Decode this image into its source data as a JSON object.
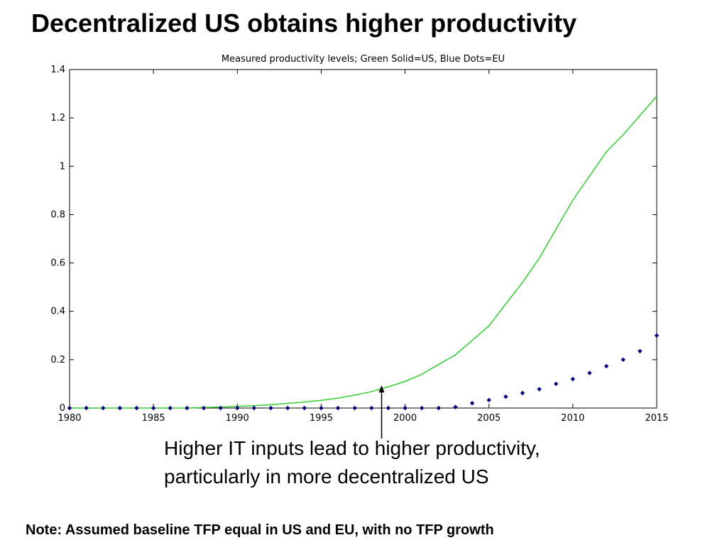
{
  "slide": {
    "title": "Decentralized US obtains higher productivity",
    "annotation_lines": [
      "Higher IT inputs lead to higher productivity,",
      "particularly in more decentralized US"
    ],
    "note": "Note: Assumed baseline TFP equal in US and EU, with no TFP growth"
  },
  "chart_data": {
    "type": "line",
    "title": "Measured productivity levels; Green Solid=US, Blue Dots=EU",
    "xlabel": "",
    "ylabel": "",
    "xlim": [
      1980,
      2015
    ],
    "ylim": [
      0,
      1.4
    ],
    "x_ticks": [
      1980,
      1985,
      1990,
      1995,
      2000,
      2005,
      2010,
      2015
    ],
    "y_ticks": [
      0,
      0.2,
      0.4,
      0.6,
      0.8,
      1,
      1.2,
      1.4
    ],
    "y_tick_labels": [
      "0",
      "0.2",
      "0.4",
      "0.6",
      "0.8",
      "1",
      "1.2",
      "1.4"
    ],
    "grid": false,
    "legend": "in title",
    "x": [
      1980,
      1981,
      1982,
      1983,
      1984,
      1985,
      1986,
      1987,
      1988,
      1989,
      1990,
      1991,
      1992,
      1993,
      1994,
      1995,
      1996,
      1997,
      1998,
      1999,
      2000,
      2001,
      2002,
      2003,
      2004,
      2005,
      2006,
      2007,
      2008,
      2009,
      2010,
      2011,
      2012,
      2013,
      2014,
      2015
    ],
    "series": [
      {
        "name": "US",
        "style": "solid",
        "color": "#33cc33",
        "values": [
          0,
          0,
          0,
          0,
          0,
          0,
          0,
          0,
          0.002,
          0.004,
          0.007,
          0.01,
          0.014,
          0.019,
          0.025,
          0.032,
          0.041,
          0.053,
          0.068,
          0.088,
          0.11,
          0.14,
          0.18,
          0.22,
          0.28,
          0.34,
          0.43,
          0.52,
          0.62,
          0.74,
          0.86,
          0.96,
          1.06,
          1.13,
          1.21,
          1.29
        ]
      },
      {
        "name": "EU",
        "style": "dots",
        "color": "#000080",
        "values": [
          0,
          0,
          0,
          0,
          0,
          0,
          0,
          0,
          0,
          0,
          0,
          0,
          0,
          0,
          0,
          0,
          0,
          0,
          0,
          0,
          0,
          0,
          0,
          0.004,
          0.02,
          0.033,
          0.047,
          0.062,
          0.078,
          0.1,
          0.12,
          0.145,
          0.173,
          0.2,
          0.235,
          0.3
        ]
      }
    ],
    "annotation_arrow_x": 1998.6
  }
}
